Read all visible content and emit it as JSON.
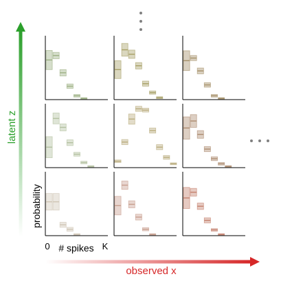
{
  "axes": {
    "y_label": "latent z",
    "x_label": "observed x",
    "probability_label": "probability",
    "spikes_label": "# spikes",
    "tick_zero": "0",
    "tick_k": "K"
  },
  "colors": {
    "green": "#2ca02c",
    "red": "#d62728",
    "spine": "#000000",
    "dots": "#808080"
  },
  "panels": [
    {
      "row": 0,
      "col": 0,
      "color": "#9cb083",
      "values": [
        0.62,
        0.69,
        0.42,
        0.21,
        0.06,
        0.02,
        0.0,
        0.0
      ],
      "bands": [
        0.3,
        0.1,
        0.1,
        0.07,
        0.04,
        0.02,
        0.0,
        0.0
      ]
    },
    {
      "row": 0,
      "col": 1,
      "color": "#a7a066",
      "values": [
        0.47,
        0.78,
        0.71,
        0.53,
        0.25,
        0.11,
        0.03,
        0.0
      ],
      "bands": [
        0.28,
        0.2,
        0.13,
        0.1,
        0.08,
        0.05,
        0.03,
        0.0
      ]
    },
    {
      "row": 0,
      "col": 2,
      "color": "#a59068",
      "values": [
        0.61,
        0.65,
        0.45,
        0.23,
        0.06,
        0.02,
        0.0,
        0.0
      ],
      "bands": [
        0.31,
        0.08,
        0.09,
        0.07,
        0.04,
        0.02,
        0.0,
        0.0
      ]
    },
    {
      "row": 1,
      "col": 0,
      "color": "#b3c0a0",
      "values": [
        0.32,
        0.77,
        0.63,
        0.39,
        0.21,
        0.08,
        0.02,
        0.0
      ],
      "bands": [
        0.33,
        0.17,
        0.11,
        0.09,
        0.06,
        0.04,
        0.02,
        0.0
      ]
    },
    {
      "row": 1,
      "col": 1,
      "color": "#b9ac7e",
      "values": [
        0.1,
        0.4,
        0.76,
        0.92,
        0.9,
        0.58,
        0.32,
        0.16,
        0.06
      ],
      "bands": [
        0.04,
        0.08,
        0.16,
        0.08,
        0.06,
        0.08,
        0.08,
        0.06,
        0.03
      ]
    },
    {
      "row": 1,
      "col": 2,
      "color": "#ad8c70",
      "values": [
        0.62,
        0.73,
        0.52,
        0.29,
        0.14,
        0.06,
        0.02,
        0.0
      ],
      "bands": [
        0.35,
        0.2,
        0.12,
        0.08,
        0.06,
        0.04,
        0.02,
        0.0
      ]
    },
    {
      "row": 2,
      "col": 0,
      "color": "#cfc5b5",
      "values": [
        0.53,
        0.53,
        0.17,
        0.1,
        0.02,
        0.0,
        0.0,
        0.0
      ],
      "bands": [
        0.26,
        0.26,
        0.08,
        0.06,
        0.02,
        0.0,
        0.0,
        0.0
      ]
    },
    {
      "row": 2,
      "col": 1,
      "color": "#c79e8e",
      "values": [
        0.47,
        0.79,
        0.49,
        0.29,
        0.1,
        0.02,
        0.0,
        0.0
      ],
      "bands": [
        0.29,
        0.13,
        0.11,
        0.09,
        0.05,
        0.02,
        0.0,
        0.0
      ]
    },
    {
      "row": 2,
      "col": 2,
      "color": "#c4806e",
      "values": [
        0.59,
        0.68,
        0.46,
        0.24,
        0.09,
        0.02,
        0.0,
        0.0
      ],
      "bands": [
        0.33,
        0.12,
        0.1,
        0.08,
        0.04,
        0.02,
        0.0,
        0.0
      ]
    }
  ]
}
